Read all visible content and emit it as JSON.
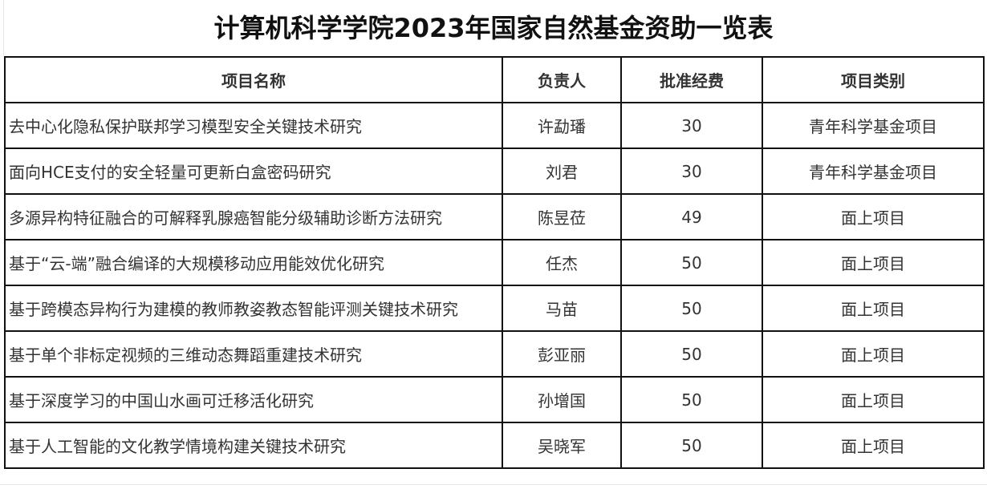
{
  "title": "计算机科学学院2023年国家自然基金资助一览表",
  "table": {
    "headers": [
      "项目名称",
      "负责人",
      "批准经费",
      "项目类别"
    ],
    "rows": [
      [
        "去中心化隐私保护联邦学习模型安全关键技术研究",
        "许勐璠",
        "30",
        "青年科学基金项目"
      ],
      [
        "面向HCE支付的安全轻量可更新白盒密码研究",
        "刘君",
        "30",
        "青年科学基金项目"
      ],
      [
        "多源异构特征融合的可解释乳腺癌智能分级辅助诊断方法研究",
        "陈昱莅",
        "49",
        "面上项目"
      ],
      [
        "基于“云-端”融合编译的大规模移动应用能效优化研究",
        "任杰",
        "50",
        "面上项目"
      ],
      [
        "基于跨模态异构行为建模的教师教姿教态智能评测关键技术研究",
        "马苗",
        "50",
        "面上项目"
      ],
      [
        "基于单个非标定视频的三维动态舞蹈重建技术研究",
        "彭亚丽",
        "50",
        "面上项目"
      ],
      [
        "基于深度学习的中国山水画可迁移活化研究",
        "孙增国",
        "50",
        "面上项目"
      ],
      [
        "基于人工智能的文化教学情境构建关键技术研究",
        "吴晓军",
        "50",
        "面上项目"
      ]
    ]
  }
}
